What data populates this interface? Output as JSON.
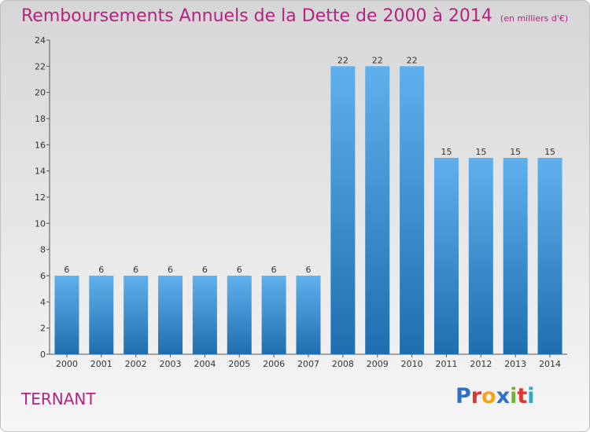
{
  "title": "Remboursements Annuels de la Dette de 2000 à 2014",
  "unit": "(en milliers d'€)",
  "commune": "TERNANT",
  "logo": {
    "text": "Proxiti",
    "colors": [
      "#2f6fc5",
      "#e0342f",
      "#f2a51a",
      "#2f6fc5",
      "#7ab03a",
      "#e0342f",
      "#2fa9c5"
    ]
  },
  "colors": {
    "title": "#b2247f",
    "bar_top": "#5fb0ec",
    "bar_bottom": "#1f6fb0"
  },
  "chart_data": {
    "type": "bar",
    "title": "Remboursements Annuels de la Dette de 2000 à 2014",
    "ylim": [
      0,
      24
    ],
    "yticks": [
      0,
      2,
      4,
      6,
      8,
      10,
      12,
      14,
      16,
      18,
      20,
      22,
      24
    ],
    "grid": false,
    "categories": [
      "2000",
      "2001",
      "2002",
      "2003",
      "2004",
      "2005",
      "2006",
      "2007",
      "2008",
      "2009",
      "2010",
      "2011",
      "2012",
      "2013",
      "2014"
    ],
    "values": [
      6,
      6,
      6,
      6,
      6,
      6,
      6,
      6,
      22,
      22,
      22,
      15,
      15,
      15,
      15
    ]
  }
}
